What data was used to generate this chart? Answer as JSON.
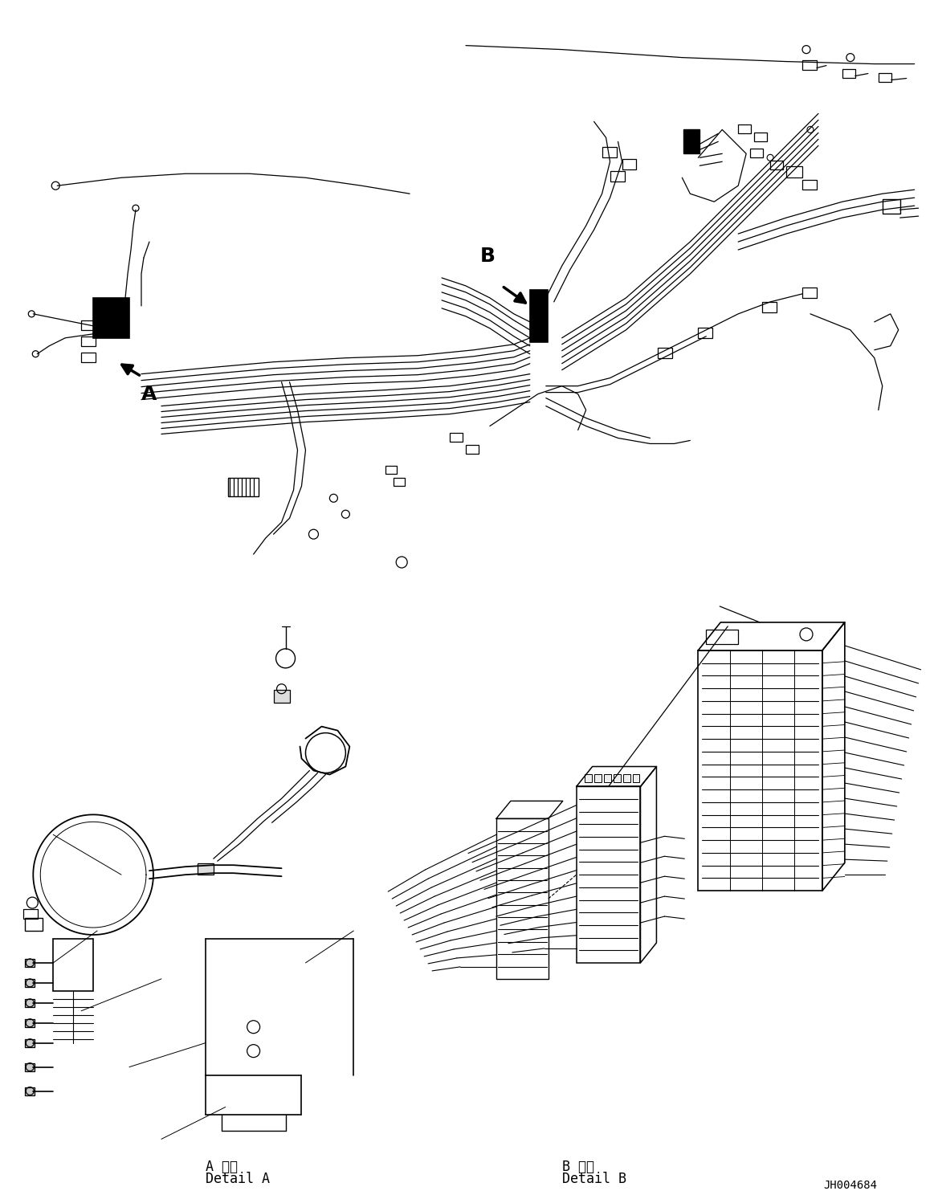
{
  "background_color": "#ffffff",
  "line_color": "#000000",
  "figure_width": 11.63,
  "figure_height": 14.88,
  "dpi": 100,
  "part_id": "JH004684",
  "label_a": "A",
  "label_b": "B",
  "detail_a_jp": "A 詳細",
  "detail_a_en": "Detail A",
  "detail_b_jp": "B 詳細",
  "detail_b_en": "Detail B",
  "arrow_color": "#000000",
  "text_color": "#000000",
  "font_size_labels": 16,
  "font_size_detail": 12,
  "font_size_id": 10
}
